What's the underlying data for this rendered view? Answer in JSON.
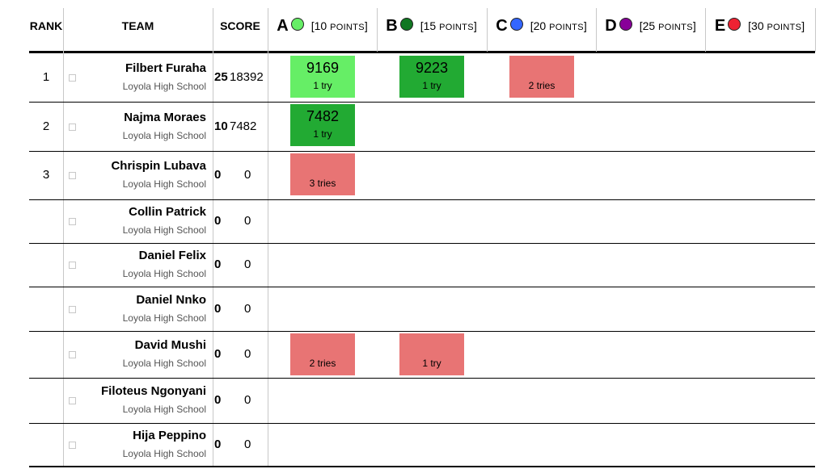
{
  "headers": {
    "rank": "RANK",
    "team": "TEAM",
    "score": "SCORE"
  },
  "problems": [
    {
      "letter": "A",
      "points_open": "[10 ",
      "points_word": "POINTS",
      "points_close": "]",
      "color": "#66ee66"
    },
    {
      "letter": "B",
      "points_open": "[15 ",
      "points_word": "POINTS",
      "points_close": "]",
      "color": "#117722"
    },
    {
      "letter": "C",
      "points_open": "[20 ",
      "points_word": "POINTS",
      "points_close": "]",
      "color": "#3366ff"
    },
    {
      "letter": "D",
      "points_open": "[25 ",
      "points_word": "POINTS",
      "points_close": "]",
      "color": "#880099"
    },
    {
      "letter": "E",
      "points_open": "[30 ",
      "points_word": "POINTS",
      "points_close": "]",
      "color": "#ee2233"
    }
  ],
  "teams": [
    {
      "rank": "1",
      "name": "Filbert Furaha",
      "school": "Loyola High School",
      "solved": "25",
      "penalty": "18392",
      "cells": [
        {
          "p": 0,
          "status": "first",
          "time": "9169",
          "tries": "1 try"
        },
        {
          "p": 1,
          "status": "ok",
          "time": "9223",
          "tries": "1 try"
        },
        {
          "p": 2,
          "status": "wrong",
          "time": "",
          "tries": "2 tries"
        }
      ]
    },
    {
      "rank": "2",
      "name": "Najma Moraes",
      "school": "Loyola High School",
      "solved": "10",
      "penalty": "7482",
      "cells": [
        {
          "p": 0,
          "status": "ok",
          "time": "7482",
          "tries": "1 try"
        }
      ]
    },
    {
      "rank": "3",
      "name": "Chrispin Lubava",
      "school": "Loyola High School",
      "solved": "0",
      "penalty": "0",
      "cells": [
        {
          "p": 0,
          "status": "wrong",
          "time": "",
          "tries": "3 tries"
        }
      ]
    },
    {
      "rank": "",
      "name": "Collin Patrick",
      "school": "Loyola High School",
      "solved": "0",
      "penalty": "0",
      "cells": []
    },
    {
      "rank": "",
      "name": "Daniel Felix",
      "school": "Loyola High School",
      "solved": "0",
      "penalty": "0",
      "cells": []
    },
    {
      "rank": "",
      "name": "Daniel Nnko",
      "school": "Loyola High School",
      "solved": "0",
      "penalty": "0",
      "cells": []
    },
    {
      "rank": "",
      "name": "David Mushi",
      "school": "Loyola High School",
      "solved": "0",
      "penalty": "0",
      "cells": [
        {
          "p": 0,
          "status": "wrong",
          "time": "",
          "tries": "2 tries"
        },
        {
          "p": 1,
          "status": "wrong",
          "time": "",
          "tries": "1 try"
        }
      ]
    },
    {
      "rank": "",
      "name": "Filoteus Ngonyani",
      "school": "Loyola High School",
      "solved": "0",
      "penalty": "0",
      "cells": []
    },
    {
      "rank": "",
      "name": "Hija Peppino",
      "school": "Loyola High School",
      "solved": "0",
      "penalty": "0",
      "cells": []
    }
  ]
}
